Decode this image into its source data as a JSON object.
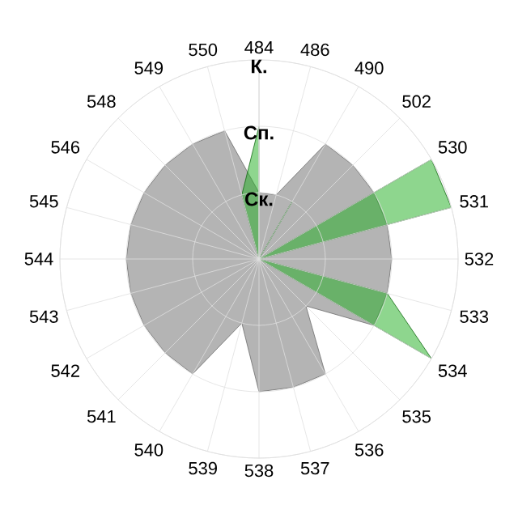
{
  "chart_data": {
    "type": "radar",
    "categories": [
      "484",
      "486",
      "490",
      "502",
      "530",
      "531",
      "532",
      "533",
      "534",
      "535",
      "536",
      "537",
      "538",
      "539",
      "540",
      "541",
      "542",
      "543",
      "544",
      "545",
      "546",
      "548",
      "549",
      "550"
    ],
    "ylim": [
      0,
      3
    ],
    "yticks": [
      {
        "value": 1,
        "label": "Ск."
      },
      {
        "value": 2,
        "label": "Сп."
      },
      {
        "value": 3,
        "label": "К."
      }
    ],
    "grid": true,
    "series": [
      {
        "color": "#b4b4b4",
        "values": [
          1,
          1,
          2,
          2,
          2,
          2,
          2,
          2,
          2,
          1,
          2,
          2,
          2,
          1,
          2,
          2,
          2,
          2,
          2,
          2,
          2,
          2,
          2,
          2
        ]
      },
      {
        "color": "#1dad1d",
        "values": [
          2,
          0,
          1,
          0,
          3,
          3,
          0,
          2,
          3,
          0,
          0,
          0,
          0,
          0,
          0,
          0,
          0,
          0,
          0,
          0,
          0,
          0,
          0,
          1
        ]
      }
    ]
  }
}
